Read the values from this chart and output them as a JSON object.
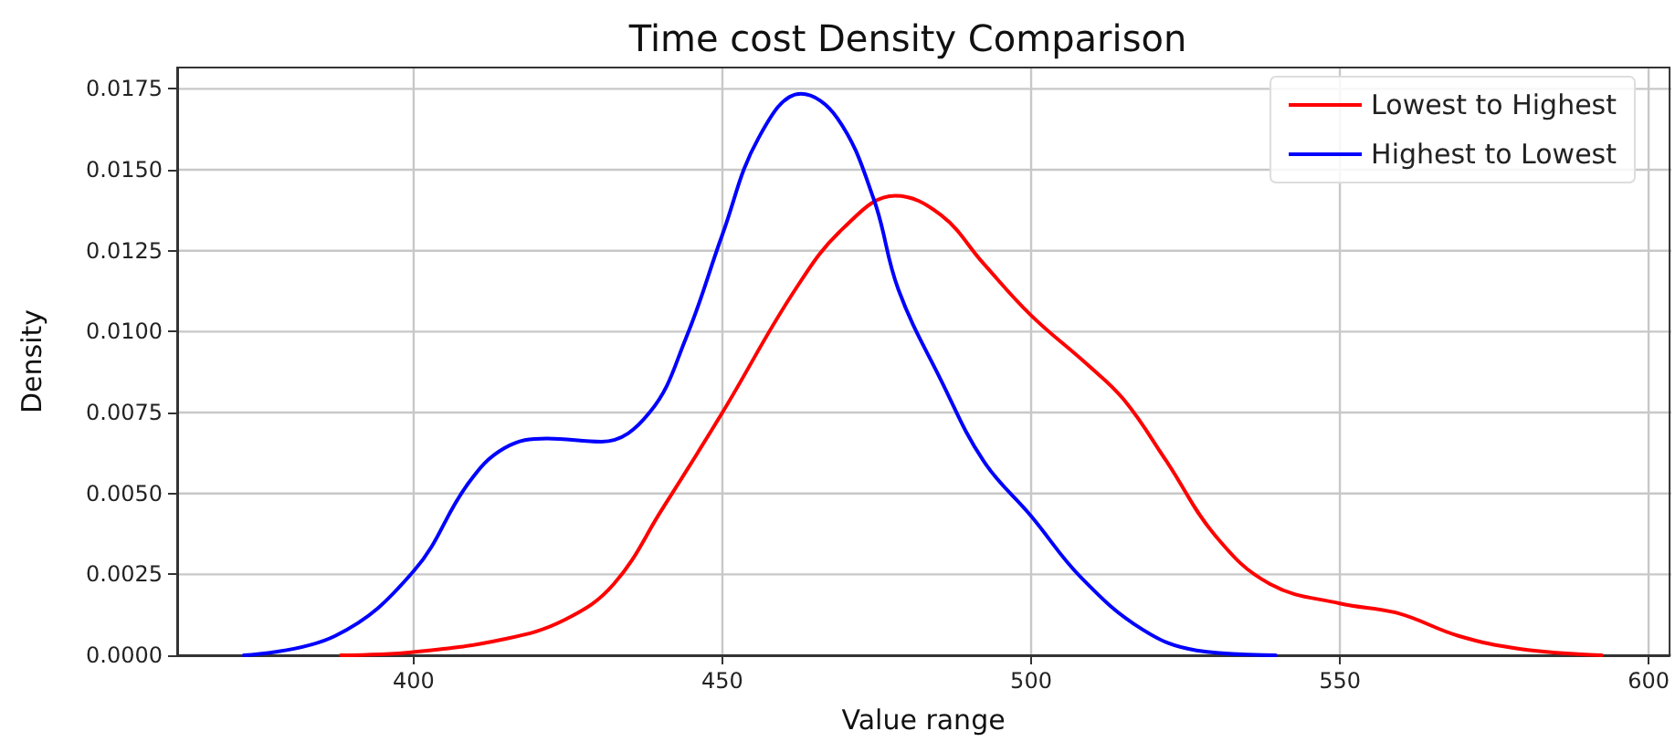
{
  "chart_data": {
    "type": "line",
    "title": "Time cost Density Comparison",
    "xlabel": "Value range",
    "ylabel": "Density",
    "series": [
      {
        "name": "Lowest to Highest",
        "color": "#ff0000",
        "x": [
          388.2,
          400,
          414.7,
          424.5,
          432.4,
          440.2,
          450,
          461.8,
          469.6,
          478,
          485.4,
          492.3,
          500,
          509,
          515,
          521.9,
          529.8,
          538.7,
          550,
          559.4,
          569.2,
          579.1,
          592.4
        ],
        "values": [
          0,
          0.0001,
          0.0005,
          0.0011,
          0.0022,
          0.0045,
          0.0075,
          0.0113,
          0.0132,
          0.0142,
          0.0136,
          0.0121,
          0.0105,
          0.009,
          0.0079,
          0.006,
          0.0037,
          0.0022,
          0.0016,
          0.0013,
          0.0006,
          0.0002,
          0
        ]
      },
      {
        "name": "Highest to Lowest",
        "color": "#0000ff",
        "x": [
          372.5,
          387.3,
          400,
          408.8,
          414.7,
          421.6,
          430.4,
          438.2,
          444.1,
          450,
          455.9,
          462.7,
          468.6,
          474.5,
          478.5,
          485.4,
          492.3,
          500,
          508.1,
          518,
          526.8,
          539.6
        ],
        "values": [
          0,
          0.0006,
          0.0026,
          0.0053,
          0.0064,
          0.0067,
          0.0066,
          0.0075,
          0.0098,
          0.013,
          0.016,
          0.01735,
          0.0166,
          0.0141,
          0.0113,
          0.0085,
          0.006,
          0.0043,
          0.0024,
          0.0008,
          0.00015,
          0
        ]
      }
    ],
    "xlim": [
      361.7,
      603.4
    ],
    "xticks": [
      400,
      450,
      500,
      550,
      600
    ],
    "ylim": [
      0,
      0.01816
    ],
    "yticks": [
      {
        "value": 0,
        "label": "0.0000"
      },
      {
        "value": 0.0025,
        "label": "0.0025"
      },
      {
        "value": 0.005,
        "label": "0.0050"
      },
      {
        "value": 0.0075,
        "label": "0.0075"
      },
      {
        "value": 0.01,
        "label": "0.0100"
      },
      {
        "value": 0.0125,
        "label": "0.0125"
      },
      {
        "value": 0.015,
        "label": "0.0150"
      },
      {
        "value": 0.0175,
        "label": "0.0175"
      }
    ],
    "grid": true,
    "legend": "top right",
    "marker": "none",
    "line_style": "solid"
  }
}
